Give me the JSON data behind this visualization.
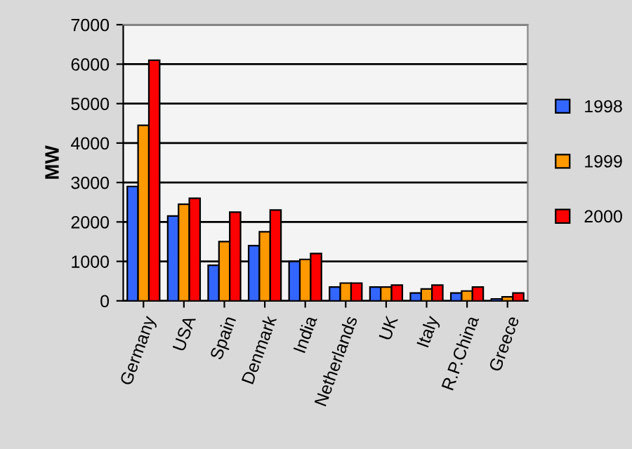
{
  "chart_data": {
    "type": "bar",
    "ylabel": "MW",
    "categories": [
      "Germany",
      "USA",
      "Spain",
      "Denmark",
      "India",
      "Netherlands",
      "UK",
      "Italy",
      "R.P.China",
      "Greece"
    ],
    "series": [
      {
        "name": "1998",
        "color": "#3366ff",
        "values": [
          2900,
          2150,
          900,
          1400,
          1000,
          350,
          350,
          200,
          200,
          50
        ]
      },
      {
        "name": "1999",
        "color": "#ff9900",
        "values": [
          4450,
          2450,
          1500,
          1750,
          1050,
          450,
          350,
          300,
          250,
          100
        ]
      },
      {
        "name": "2000",
        "color": "#ff0000",
        "values": [
          6100,
          2600,
          2250,
          2300,
          1200,
          450,
          400,
          400,
          350,
          200
        ]
      }
    ],
    "ylim": [
      0,
      7000
    ],
    "yticks": [
      0,
      1000,
      2000,
      3000,
      4000,
      5000,
      6000,
      7000
    ],
    "grid": "y",
    "legend": "right"
  }
}
